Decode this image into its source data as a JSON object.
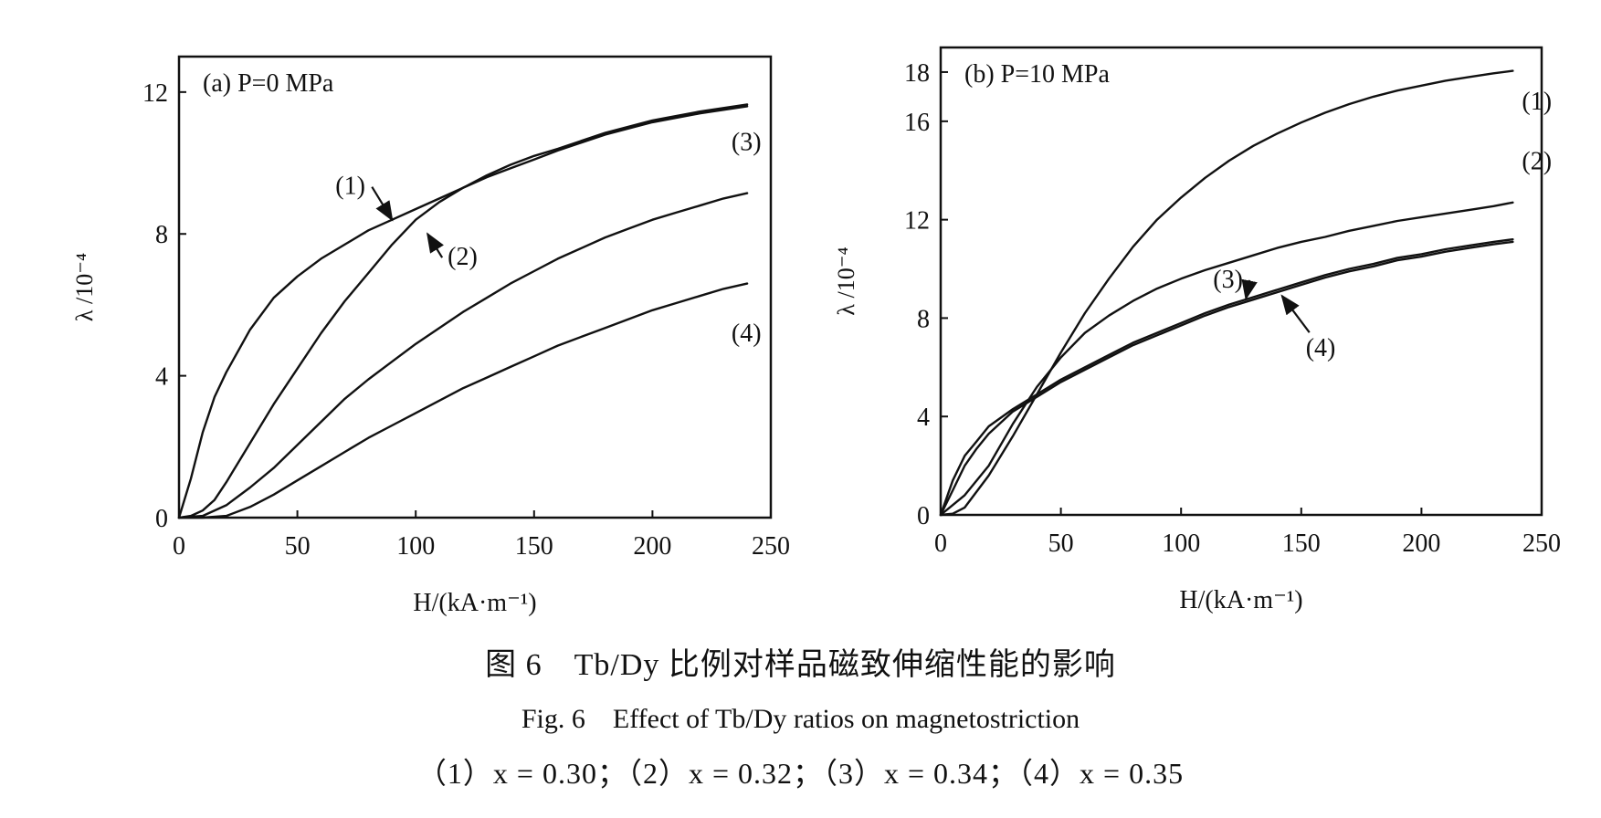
{
  "figure": {
    "caption_zh": "图 6　Tb/Dy 比例对样品磁致伸缩性能的影响",
    "caption_en": "Fig. 6　Effect of Tb/Dy ratios on magnetostriction",
    "caption_compositions": "（1）x = 0.30；（2）x = 0.32；（3）x = 0.34；（4）x = 0.35"
  },
  "chart_data": [
    {
      "type": "line",
      "panel_label": "(a)  P=0 MPa",
      "xlabel": "H/(kA·m⁻¹)",
      "ylabel": "λ /10⁻⁴",
      "xlim": [
        0,
        250
      ],
      "ylim": [
        0,
        13
      ],
      "xticks": [
        0,
        50,
        100,
        150,
        200,
        250
      ],
      "yticks": [
        0,
        4,
        8,
        12
      ],
      "grid": false,
      "series": [
        {
          "name": "(1)",
          "x": [
            0,
            5,
            10,
            15,
            20,
            30,
            40,
            50,
            60,
            70,
            80,
            90,
            100,
            110,
            120,
            130,
            140,
            150,
            160,
            180,
            200,
            220,
            240
          ],
          "y": [
            0,
            1.1,
            2.4,
            3.4,
            4.1,
            5.3,
            6.2,
            6.8,
            7.3,
            7.7,
            8.1,
            8.4,
            8.7,
            9.0,
            9.3,
            9.6,
            9.85,
            10.1,
            10.35,
            10.8,
            11.15,
            11.4,
            11.6
          ]
        },
        {
          "name": "(2)",
          "x": [
            0,
            5,
            10,
            15,
            20,
            30,
            40,
            50,
            60,
            70,
            80,
            90,
            100,
            110,
            120,
            130,
            140,
            150,
            160,
            180,
            200,
            220,
            240
          ],
          "y": [
            0,
            0.05,
            0.2,
            0.5,
            1.0,
            2.1,
            3.2,
            4.2,
            5.2,
            6.1,
            6.9,
            7.7,
            8.4,
            8.9,
            9.3,
            9.65,
            9.95,
            10.2,
            10.4,
            10.85,
            11.2,
            11.45,
            11.65
          ]
        },
        {
          "name": "(3)",
          "x": [
            0,
            10,
            20,
            30,
            40,
            50,
            60,
            70,
            80,
            90,
            100,
            110,
            120,
            130,
            140,
            150,
            160,
            170,
            180,
            190,
            200,
            210,
            220,
            230,
            240
          ],
          "y": [
            0,
            0.05,
            0.35,
            0.85,
            1.4,
            2.05,
            2.7,
            3.35,
            3.9,
            4.4,
            4.9,
            5.35,
            5.8,
            6.2,
            6.6,
            6.95,
            7.3,
            7.6,
            7.9,
            8.15,
            8.4,
            8.6,
            8.8,
            9.0,
            9.15
          ]
        },
        {
          "name": "(4)",
          "x": [
            0,
            10,
            20,
            30,
            40,
            50,
            60,
            70,
            80,
            90,
            100,
            110,
            120,
            130,
            140,
            150,
            160,
            170,
            180,
            190,
            200,
            210,
            220,
            230,
            240
          ],
          "y": [
            0,
            0,
            0.05,
            0.3,
            0.65,
            1.05,
            1.45,
            1.85,
            2.25,
            2.6,
            2.95,
            3.3,
            3.65,
            3.95,
            4.25,
            4.55,
            4.85,
            5.1,
            5.35,
            5.6,
            5.85,
            6.05,
            6.25,
            6.45,
            6.6
          ]
        }
      ],
      "annotations": [
        {
          "text": "(1)",
          "anchor_x": 90,
          "anchor_y": 8.4
        },
        {
          "text": "(2)",
          "anchor_x": 105,
          "anchor_y": 8.0
        },
        {
          "text": "(3)",
          "anchor_x": 238,
          "anchor_y": 9.8
        },
        {
          "text": "(4)",
          "anchor_x": 238,
          "anchor_y": 6.0
        }
      ]
    },
    {
      "type": "line",
      "panel_label": "(b)  P=10 MPa",
      "xlabel": "H/(kA·m⁻¹)",
      "ylabel": "λ /10⁻⁴",
      "xlim": [
        0,
        250
      ],
      "ylim": [
        0,
        19
      ],
      "xticks": [
        0,
        50,
        100,
        150,
        200,
        250
      ],
      "yticks": [
        0,
        4,
        8,
        12,
        16,
        18
      ],
      "grid": false,
      "series": [
        {
          "name": "(1)",
          "x": [
            0,
            5,
            10,
            20,
            30,
            40,
            50,
            60,
            70,
            80,
            90,
            100,
            110,
            120,
            130,
            140,
            150,
            160,
            170,
            180,
            190,
            200,
            210,
            220,
            230,
            238
          ],
          "y": [
            0,
            0.05,
            0.3,
            1.6,
            3.2,
            4.9,
            6.6,
            8.2,
            9.6,
            10.9,
            12.0,
            12.9,
            13.7,
            14.4,
            15.0,
            15.5,
            15.95,
            16.35,
            16.7,
            17.0,
            17.25,
            17.45,
            17.65,
            17.8,
            17.95,
            18.05
          ]
        },
        {
          "name": "(2)",
          "x": [
            0,
            5,
            10,
            20,
            30,
            40,
            50,
            60,
            70,
            80,
            90,
            100,
            110,
            120,
            130,
            140,
            150,
            160,
            170,
            180,
            190,
            200,
            210,
            220,
            230,
            238
          ],
          "y": [
            0,
            0.4,
            0.8,
            2.0,
            3.7,
            5.2,
            6.4,
            7.4,
            8.1,
            8.7,
            9.2,
            9.6,
            9.95,
            10.25,
            10.55,
            10.85,
            11.1,
            11.3,
            11.55,
            11.75,
            11.95,
            12.1,
            12.25,
            12.4,
            12.55,
            12.7
          ]
        },
        {
          "name": "(3)",
          "x": [
            0,
            5,
            10,
            15,
            20,
            30,
            40,
            50,
            60,
            70,
            80,
            90,
            100,
            110,
            120,
            130,
            140,
            150,
            160,
            170,
            180,
            190,
            200,
            210,
            220,
            230,
            238
          ],
          "y": [
            0,
            1.4,
            2.4,
            3.0,
            3.6,
            4.3,
            4.9,
            5.5,
            6.0,
            6.5,
            7.0,
            7.4,
            7.8,
            8.2,
            8.55,
            8.85,
            9.15,
            9.45,
            9.75,
            10.0,
            10.2,
            10.45,
            10.6,
            10.8,
            10.95,
            11.1,
            11.2
          ]
        },
        {
          "name": "(4)",
          "x": [
            0,
            5,
            10,
            15,
            20,
            30,
            40,
            50,
            60,
            70,
            80,
            90,
            100,
            110,
            120,
            130,
            140,
            150,
            160,
            170,
            180,
            190,
            200,
            210,
            220,
            230,
            238
          ],
          "y": [
            0,
            1.0,
            2.0,
            2.7,
            3.3,
            4.2,
            4.8,
            5.4,
            5.9,
            6.4,
            6.9,
            7.3,
            7.7,
            8.1,
            8.45,
            8.75,
            9.05,
            9.35,
            9.65,
            9.9,
            10.1,
            10.35,
            10.5,
            10.7,
            10.85,
            11.0,
            11.1
          ]
        }
      ],
      "annotations": [
        {
          "text": "(1)",
          "anchor_x": 238,
          "anchor_y": 17.3
        },
        {
          "text": "(2)",
          "anchor_x": 238,
          "anchor_y": 13.3
        },
        {
          "text": "(3)",
          "anchor_x": 127,
          "anchor_y": 8.8
        },
        {
          "text": "(4)",
          "anchor_x": 142,
          "anchor_y": 8.9
        }
      ]
    }
  ]
}
